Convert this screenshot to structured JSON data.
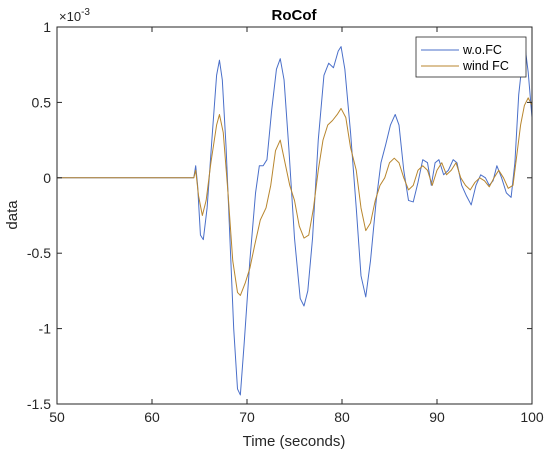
{
  "chart_data": {
    "type": "line",
    "title": "RoCof",
    "xlabel": "Time (seconds)",
    "ylabel": "data",
    "y_exponent_label": "×10",
    "y_exponent_power": "-3",
    "xlim": [
      50,
      100
    ],
    "ylim": [
      -1.5,
      1
    ],
    "x_ticks": [
      50,
      60,
      70,
      80,
      90,
      100
    ],
    "x_tick_labels": [
      "50",
      "60",
      "70",
      "80",
      "90",
      "100"
    ],
    "y_ticks": [
      -1.5,
      -1,
      -0.5,
      0,
      0.5,
      1
    ],
    "y_tick_labels": [
      "-1.5",
      "-1",
      "-0.5",
      "0",
      "0.5",
      "1"
    ],
    "grid": false,
    "legend_position": "top-right",
    "series": [
      {
        "name": "w.o.FC",
        "color": "#4a6fc9",
        "points": [
          [
            50,
            0
          ],
          [
            64.4,
            0
          ],
          [
            64.6,
            0.08
          ],
          [
            64.8,
            -0.05
          ],
          [
            65.1,
            -0.38
          ],
          [
            65.4,
            -0.41
          ],
          [
            65.8,
            -0.2
          ],
          [
            66.3,
            0.25
          ],
          [
            66.8,
            0.68
          ],
          [
            67.1,
            0.78
          ],
          [
            67.4,
            0.65
          ],
          [
            67.8,
            0.2
          ],
          [
            68.2,
            -0.4
          ],
          [
            68.6,
            -1.0
          ],
          [
            69.0,
            -1.4
          ],
          [
            69.3,
            -1.44
          ],
          [
            69.7,
            -1.1
          ],
          [
            70.3,
            -0.55
          ],
          [
            70.9,
            -0.1
          ],
          [
            71.3,
            0.08
          ],
          [
            71.7,
            0.08
          ],
          [
            72.1,
            0.12
          ],
          [
            72.6,
            0.45
          ],
          [
            73.1,
            0.72
          ],
          [
            73.5,
            0.79
          ],
          [
            73.9,
            0.65
          ],
          [
            74.4,
            0.2
          ],
          [
            75.0,
            -0.4
          ],
          [
            75.6,
            -0.8
          ],
          [
            76.0,
            -0.85
          ],
          [
            76.4,
            -0.75
          ],
          [
            76.9,
            -0.4
          ],
          [
            77.5,
            0.25
          ],
          [
            78.1,
            0.68
          ],
          [
            78.6,
            0.76
          ],
          [
            79.1,
            0.73
          ],
          [
            79.6,
            0.84
          ],
          [
            79.9,
            0.87
          ],
          [
            80.3,
            0.72
          ],
          [
            80.9,
            0.3
          ],
          [
            81.5,
            -0.2
          ],
          [
            82.0,
            -0.65
          ],
          [
            82.5,
            -0.79
          ],
          [
            83.0,
            -0.55
          ],
          [
            83.6,
            -0.15
          ],
          [
            84.1,
            0.1
          ],
          [
            84.6,
            0.22
          ],
          [
            85.1,
            0.35
          ],
          [
            85.6,
            0.42
          ],
          [
            86.0,
            0.35
          ],
          [
            86.5,
            0.05
          ],
          [
            87.0,
            -0.15
          ],
          [
            87.5,
            -0.16
          ],
          [
            88.0,
            -0.03
          ],
          [
            88.5,
            0.12
          ],
          [
            89.0,
            0.1
          ],
          [
            89.4,
            -0.05
          ],
          [
            89.8,
            0.1
          ],
          [
            90.2,
            0.12
          ],
          [
            90.7,
            0.02
          ],
          [
            91.2,
            0.05
          ],
          [
            91.7,
            0.12
          ],
          [
            92.1,
            0.1
          ],
          [
            92.6,
            -0.05
          ],
          [
            93.1,
            -0.12
          ],
          [
            93.6,
            -0.18
          ],
          [
            94.1,
            -0.05
          ],
          [
            94.6,
            0.02
          ],
          [
            95.1,
            0.0
          ],
          [
            95.5,
            -0.05
          ],
          [
            95.9,
            -0.02
          ],
          [
            96.3,
            0.08
          ],
          [
            96.8,
            0.0
          ],
          [
            97.3,
            -0.1
          ],
          [
            97.8,
            -0.13
          ],
          [
            98.2,
            0.1
          ],
          [
            98.6,
            0.55
          ],
          [
            99.0,
            0.78
          ],
          [
            99.3,
            0.85
          ],
          [
            99.6,
            0.7
          ],
          [
            100,
            0.4
          ]
        ]
      },
      {
        "name": "wind FC",
        "color": "#b8862e",
        "points": [
          [
            50,
            0
          ],
          [
            64.4,
            0
          ],
          [
            64.6,
            0.05
          ],
          [
            64.9,
            -0.12
          ],
          [
            65.3,
            -0.25
          ],
          [
            65.7,
            -0.15
          ],
          [
            66.2,
            0.1
          ],
          [
            66.8,
            0.35
          ],
          [
            67.1,
            0.42
          ],
          [
            67.5,
            0.3
          ],
          [
            68.0,
            -0.1
          ],
          [
            68.5,
            -0.55
          ],
          [
            69.0,
            -0.76
          ],
          [
            69.3,
            -0.78
          ],
          [
            69.8,
            -0.7
          ],
          [
            70.3,
            -0.6
          ],
          [
            70.8,
            -0.45
          ],
          [
            71.4,
            -0.28
          ],
          [
            72.0,
            -0.2
          ],
          [
            72.5,
            -0.05
          ],
          [
            73.0,
            0.18
          ],
          [
            73.5,
            0.25
          ],
          [
            74.0,
            0.1
          ],
          [
            74.5,
            -0.05
          ],
          [
            75.0,
            -0.15
          ],
          [
            75.5,
            -0.32
          ],
          [
            76.0,
            -0.4
          ],
          [
            76.5,
            -0.38
          ],
          [
            77.0,
            -0.2
          ],
          [
            77.5,
            0.05
          ],
          [
            78.0,
            0.25
          ],
          [
            78.5,
            0.35
          ],
          [
            79.0,
            0.38
          ],
          [
            79.5,
            0.42
          ],
          [
            79.9,
            0.46
          ],
          [
            80.4,
            0.4
          ],
          [
            80.9,
            0.2
          ],
          [
            81.5,
            0.05
          ],
          [
            82.0,
            -0.2
          ],
          [
            82.5,
            -0.35
          ],
          [
            83.0,
            -0.3
          ],
          [
            83.5,
            -0.15
          ],
          [
            84.0,
            -0.05
          ],
          [
            84.5,
            0.0
          ],
          [
            85.0,
            0.1
          ],
          [
            85.5,
            0.13
          ],
          [
            86.0,
            0.1
          ],
          [
            86.5,
            0.0
          ],
          [
            87.0,
            -0.08
          ],
          [
            87.5,
            -0.05
          ],
          [
            88.0,
            0.05
          ],
          [
            88.5,
            0.08
          ],
          [
            89.0,
            0.05
          ],
          [
            89.5,
            -0.05
          ],
          [
            90.0,
            0.05
          ],
          [
            90.5,
            0.1
          ],
          [
            91.0,
            0.02
          ],
          [
            91.5,
            0.05
          ],
          [
            92.0,
            0.1
          ],
          [
            92.5,
            0.0
          ],
          [
            93.0,
            -0.05
          ],
          [
            93.5,
            -0.08
          ],
          [
            94.0,
            -0.03
          ],
          [
            94.5,
            0.0
          ],
          [
            95.0,
            -0.02
          ],
          [
            95.5,
            -0.06
          ],
          [
            96.0,
            0.0
          ],
          [
            96.5,
            0.05
          ],
          [
            97.0,
            0.0
          ],
          [
            97.5,
            -0.07
          ],
          [
            98.0,
            -0.05
          ],
          [
            98.4,
            0.15
          ],
          [
            98.8,
            0.35
          ],
          [
            99.2,
            0.48
          ],
          [
            99.6,
            0.53
          ],
          [
            100,
            0.48
          ]
        ]
      }
    ]
  }
}
